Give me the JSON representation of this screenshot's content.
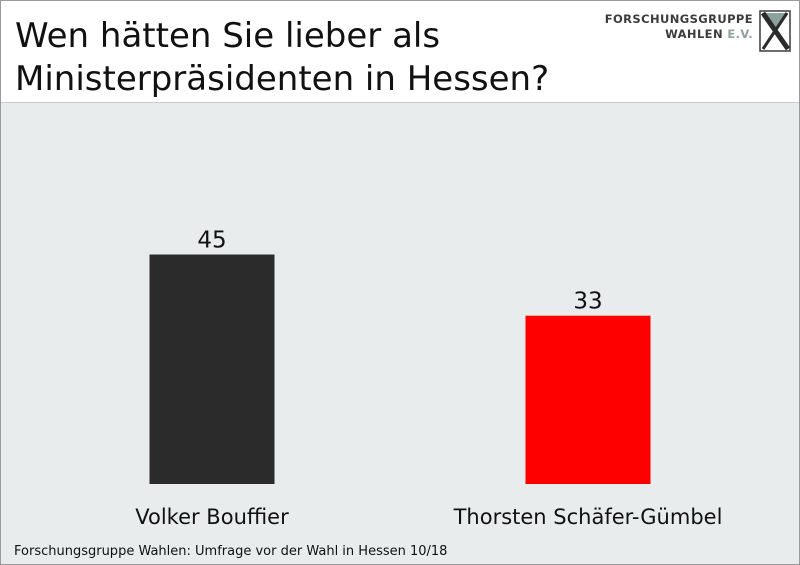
{
  "header": {
    "title_line1": "Wen hätten Sie lieber als",
    "title_line2": "Ministerpräsidenten in Hessen?"
  },
  "logo": {
    "line1": "FORSCHUNGSGRUPPE",
    "line2_main": "WAHLEN",
    "line2_suffix": "E.V.",
    "icon": "x-mark-logo-icon",
    "colors": {
      "dark": "#3c3c3c",
      "accent": "#8fa0a0"
    }
  },
  "footer": {
    "source": "Forschungsgruppe Wahlen: Umfrage vor der Wahl in Hessen 10/18"
  },
  "chart_data": {
    "type": "bar",
    "title": "Wen hätten Sie lieber als Ministerpräsidenten in Hessen?",
    "categories": [
      "Volker Bouffier",
      "Thorsten Schäfer-Gümbel"
    ],
    "values": [
      45,
      33
    ],
    "colors": [
      "#2b2b2b",
      "#ff0000"
    ],
    "data_labels": [
      "45",
      "33"
    ],
    "xlabel": "",
    "ylabel": "",
    "ylim": [
      0,
      50
    ],
    "grid": false,
    "legend": "none",
    "background": "#e9ecec"
  }
}
